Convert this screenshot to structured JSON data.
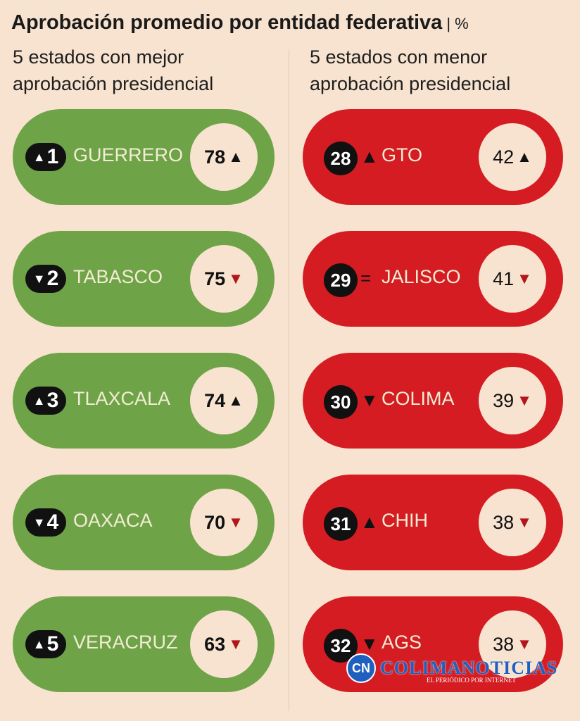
{
  "header": {
    "title": "Aprobación promedio por entidad federativa",
    "unit": "| %"
  },
  "left": {
    "subtitle": "5 estados con mejor aprobación presidencial",
    "items": [
      {
        "rank": "1",
        "rank_trend": "▲",
        "name": "GUERRERO",
        "value": "78",
        "trend": "▲",
        "trend_dir": "up"
      },
      {
        "rank": "2",
        "rank_trend": "▼",
        "name": "TABASCO",
        "value": "75",
        "trend": "▼",
        "trend_dir": "down"
      },
      {
        "rank": "3",
        "rank_trend": "▲",
        "name": "TLAXCALA",
        "value": "74",
        "trend": "▲",
        "trend_dir": "up"
      },
      {
        "rank": "4",
        "rank_trend": "▼",
        "name": "OAXACA",
        "value": "70",
        "trend": "▼",
        "trend_dir": "down"
      },
      {
        "rank": "5",
        "rank_trend": "▲",
        "name": "VERACRUZ",
        "value": "63",
        "trend": "▼",
        "trend_dir": "down"
      }
    ]
  },
  "right": {
    "subtitle": "5 estados con menor aprobación presidencial",
    "items": [
      {
        "rank": "28",
        "rank_trend": "▲",
        "name": "GTO",
        "value": "42",
        "trend": "▲",
        "trend_dir": "up"
      },
      {
        "rank": "29",
        "rank_trend": "=",
        "name": "JALISCO",
        "value": "41",
        "trend": "▼",
        "trend_dir": "down"
      },
      {
        "rank": "30",
        "rank_trend": "▼",
        "name": "COLIMA",
        "value": "39",
        "trend": "▼",
        "trend_dir": "down"
      },
      {
        "rank": "31",
        "rank_trend": "▲",
        "name": "CHIH",
        "value": "38",
        "trend": "▼",
        "trend_dir": "down"
      },
      {
        "rank": "32",
        "rank_trend": "▼",
        "name": "AGS",
        "value": "38",
        "trend": "▼",
        "trend_dir": "down"
      }
    ]
  },
  "colors": {
    "green": "#6fa348",
    "red": "#d41c22",
    "background": "#f7e3cf"
  },
  "watermark": {
    "mark": "CN",
    "name": "COLIMANOTICIAS",
    "tagline": "EL PERIÓDICO POR INTERNET"
  }
}
